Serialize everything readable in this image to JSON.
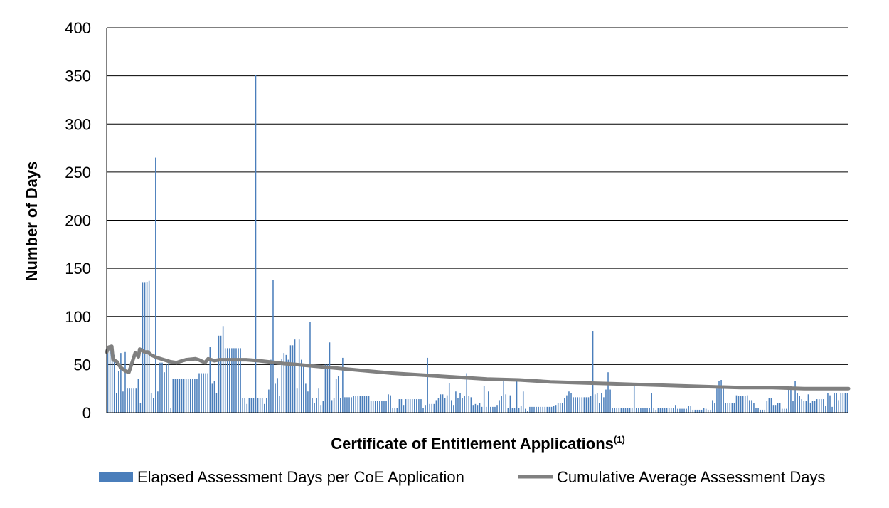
{
  "chart_data": {
    "type": "bar",
    "xlabel": "Certificate of Entitlement Applications",
    "xlabel_superscript": "(1)",
    "ylabel": "Number of Days",
    "ylim": [
      0,
      400
    ],
    "yticks": [
      "0",
      "50",
      "100",
      "150",
      "200",
      "250",
      "300",
      "350",
      "400"
    ],
    "grid": true,
    "legend_position": "bottom",
    "series": [
      {
        "name": "Elapsed Assessment Days per CoE Application",
        "type": "bar",
        "color": "#4a7ebb",
        "values": [
          65,
          68,
          70,
          60,
          20,
          43,
          62,
          22,
          63,
          25,
          25,
          25,
          25,
          25,
          35,
          10,
          135,
          135,
          136,
          137,
          20,
          15,
          265,
          22,
          52,
          52,
          42,
          50,
          55,
          5,
          35,
          35,
          35,
          35,
          35,
          35,
          35,
          35,
          35,
          35,
          35,
          35,
          41,
          41,
          41,
          41,
          41,
          68,
          30,
          33,
          20,
          80,
          80,
          90,
          67,
          67,
          67,
          67,
          67,
          67,
          67,
          67,
          15,
          15,
          9,
          15,
          15,
          15,
          351,
          15,
          15,
          15,
          9,
          15,
          24,
          55,
          138,
          30,
          36,
          17,
          56,
          62,
          60,
          55,
          70,
          70,
          76,
          25,
          76,
          55,
          50,
          30,
          22,
          94,
          15,
          10,
          15,
          25,
          8,
          12,
          50,
          50,
          73,
          13,
          15,
          35,
          38,
          15,
          57,
          16,
          16,
          16,
          16,
          17,
          17,
          17,
          17,
          17,
          17,
          17,
          17,
          12,
          12,
          12,
          12,
          12,
          12,
          12,
          12,
          19,
          18,
          5,
          5,
          5,
          14,
          14,
          8,
          14,
          14,
          14,
          14,
          14,
          14,
          14,
          14,
          5,
          8,
          57,
          9,
          9,
          9,
          13,
          15,
          19,
          19,
          15,
          18,
          31,
          13,
          8,
          22,
          15,
          20,
          15,
          17,
          41,
          17,
          16,
          8,
          9,
          8,
          10,
          6,
          28,
          6,
          22,
          6,
          6,
          6,
          8,
          13,
          17,
          35,
          19,
          5,
          18,
          5,
          5,
          35,
          5,
          7,
          22,
          4,
          2,
          6,
          6,
          6,
          6,
          6,
          6,
          6,
          6,
          6,
          6,
          6,
          7,
          8,
          10,
          10,
          10,
          15,
          18,
          22,
          20,
          16,
          16,
          16,
          16,
          16,
          16,
          16,
          16,
          17,
          85,
          19,
          20,
          10,
          20,
          16,
          24,
          42,
          24,
          5,
          5,
          5,
          5,
          5,
          5,
          5,
          5,
          5,
          5,
          30,
          5,
          5,
          5,
          5,
          5,
          5,
          5,
          20,
          5,
          3,
          5,
          5,
          5,
          5,
          5,
          5,
          5,
          5,
          8,
          4,
          4,
          4,
          4,
          4,
          7,
          7,
          3,
          3,
          3,
          3,
          3,
          5,
          4,
          3,
          3,
          13,
          10,
          25,
          33,
          34,
          25,
          10,
          10,
          10,
          10,
          10,
          18,
          17,
          17,
          17,
          17,
          18,
          13,
          13,
          10,
          5,
          5,
          3,
          3,
          3,
          12,
          15,
          15,
          8,
          8,
          10,
          10,
          4,
          4,
          4,
          28,
          28,
          12,
          33,
          20,
          17,
          14,
          12,
          12,
          19,
          10,
          12,
          12,
          14,
          14,
          14,
          14,
          7,
          20,
          18,
          6,
          20,
          20,
          13,
          20,
          20,
          20,
          20
        ]
      },
      {
        "name": "Cumulative Average Assessment Days",
        "type": "line",
        "color": "#808080",
        "points": [
          [
            0,
            63
          ],
          [
            3,
            68
          ],
          [
            8,
            69
          ],
          [
            10,
            55
          ],
          [
            16,
            53
          ],
          [
            22,
            47
          ],
          [
            30,
            43
          ],
          [
            35,
            42
          ],
          [
            40,
            52
          ],
          [
            45,
            62
          ],
          [
            50,
            58
          ],
          [
            52,
            66
          ],
          [
            60,
            63
          ],
          [
            65,
            63
          ],
          [
            70,
            60
          ],
          [
            80,
            57
          ],
          [
            100,
            53
          ],
          [
            110,
            52
          ],
          [
            115,
            53
          ],
          [
            125,
            55
          ],
          [
            140,
            56
          ],
          [
            145,
            55
          ],
          [
            155,
            52
          ],
          [
            160,
            56
          ],
          [
            170,
            54
          ],
          [
            178,
            55
          ],
          [
            200,
            55
          ],
          [
            220,
            55
          ],
          [
            240,
            54
          ],
          [
            280,
            51
          ],
          [
            300,
            50
          ],
          [
            350,
            47
          ],
          [
            400,
            44
          ],
          [
            450,
            41
          ],
          [
            500,
            39
          ],
          [
            550,
            37
          ],
          [
            600,
            35
          ],
          [
            650,
            34
          ],
          [
            700,
            32
          ],
          [
            750,
            31
          ],
          [
            800,
            30
          ],
          [
            850,
            29
          ],
          [
            900,
            28
          ],
          [
            950,
            27
          ],
          [
            1000,
            26
          ],
          [
            1050,
            26
          ],
          [
            1100,
            25
          ],
          [
            1130,
            25
          ],
          [
            1170,
            25
          ]
        ]
      }
    ]
  }
}
